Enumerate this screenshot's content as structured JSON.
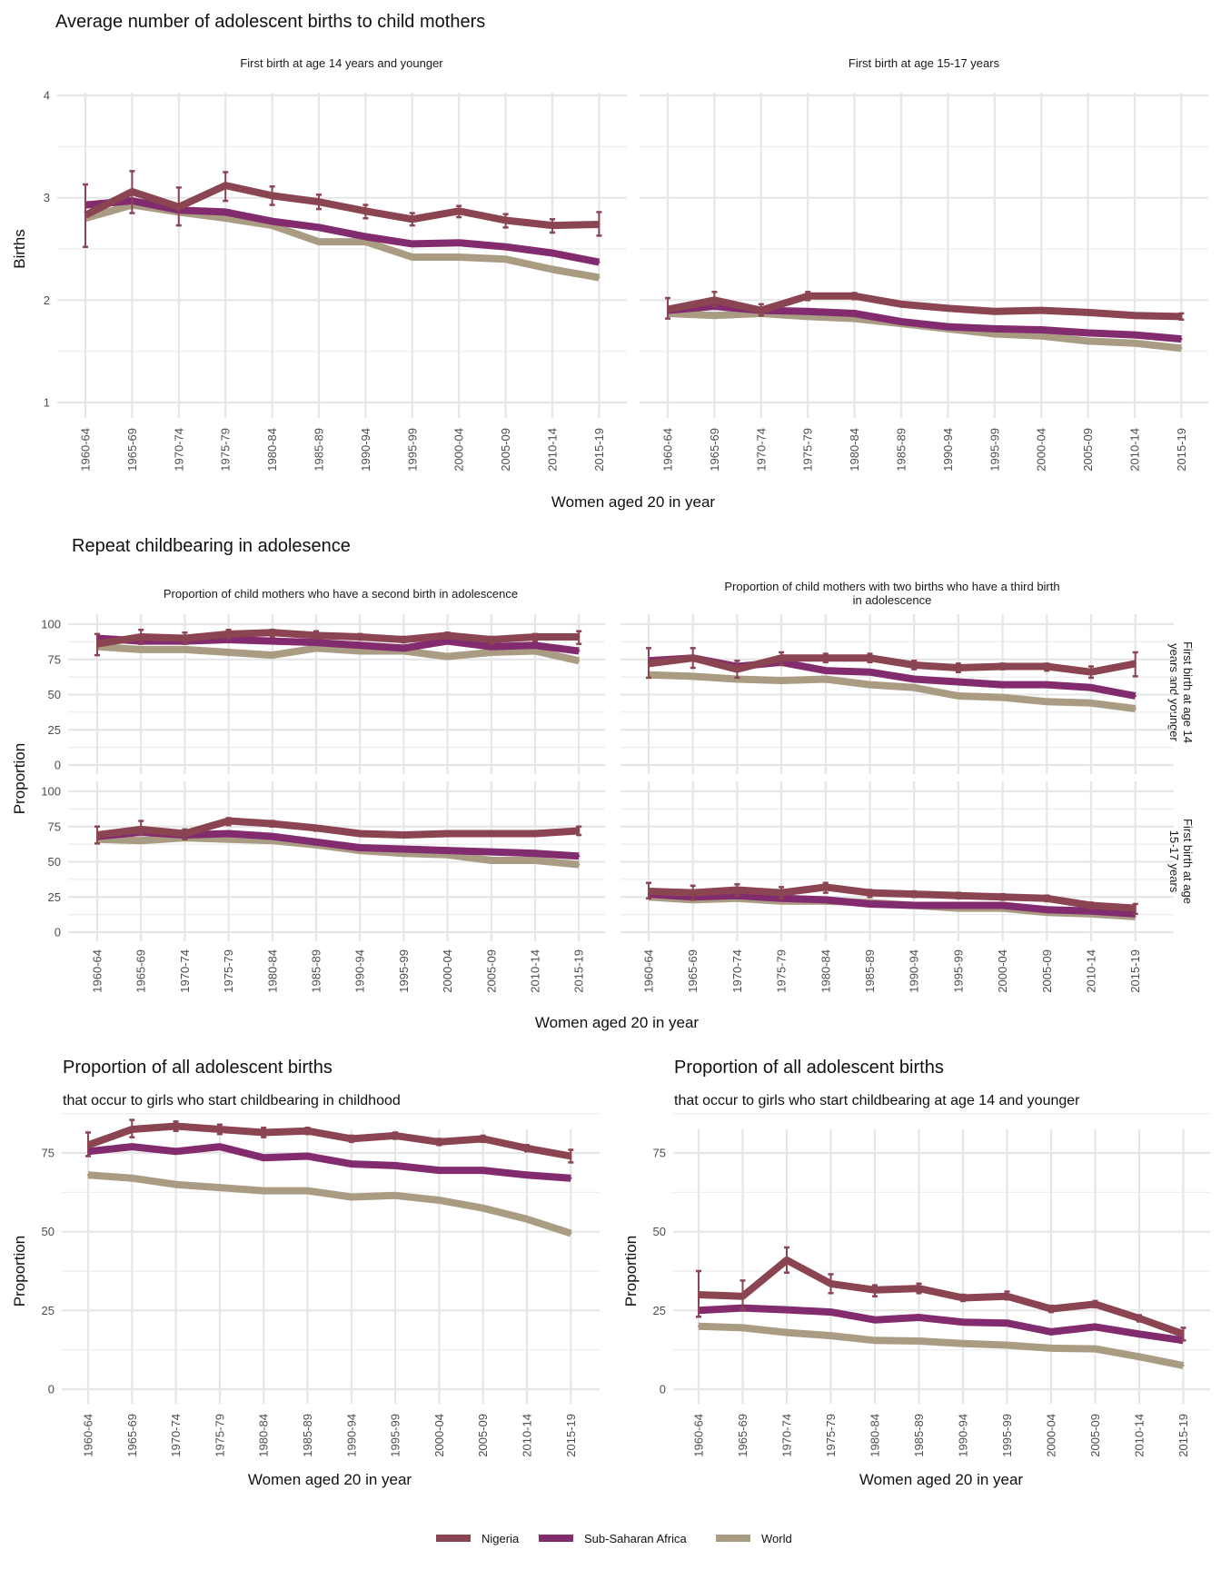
{
  "legend": {
    "position": "bottom",
    "items": [
      {
        "name": "Nigeria",
        "color": "#8B4452"
      },
      {
        "name": "Sub-Saharan Africa",
        "color": "#822C6F"
      },
      {
        "name": "World",
        "color": "#A99C82"
      }
    ]
  },
  "chart_data": [
    {
      "id": "avg-births",
      "type": "line",
      "title": "Average number of adolescent births to child mothers",
      "xlabel": "Women aged 20 in year",
      "ylabel": "Births",
      "ylim": [
        1,
        4
      ],
      "yticks": [
        1,
        2,
        3,
        4
      ],
      "grid": true,
      "categories": [
        "1960-64",
        "1965-69",
        "1970-74",
        "1975-79",
        "1980-84",
        "1985-89",
        "1990-94",
        "1995-99",
        "2000-04",
        "2005-09",
        "2010-14",
        "2015-19"
      ],
      "panels": [
        {
          "strip": "First birth at age 14 years and younger",
          "series": [
            {
              "name": "World",
              "values": [
                2.8,
                2.93,
                2.86,
                2.8,
                2.73,
                2.57,
                2.57,
                2.42,
                2.42,
                2.4,
                2.3,
                2.22
              ]
            },
            {
              "name": "Sub-Saharan Africa",
              "values": [
                2.93,
                2.97,
                2.88,
                2.86,
                2.77,
                2.71,
                2.62,
                2.55,
                2.56,
                2.52,
                2.46,
                2.37
              ]
            },
            {
              "name": "Nigeria",
              "values": [
                2.83,
                3.06,
                2.91,
                3.12,
                3.02,
                2.96,
                2.87,
                2.79,
                2.87,
                2.78,
                2.73,
                2.74
              ],
              "error_low": [
                2.52,
                2.85,
                2.73,
                2.97,
                2.93,
                2.89,
                2.8,
                2.73,
                2.81,
                2.71,
                2.66,
                2.63
              ],
              "error_high": [
                3.13,
                3.26,
                3.1,
                3.25,
                3.11,
                3.03,
                2.93,
                2.85,
                2.92,
                2.84,
                2.79,
                2.86
              ]
            }
          ]
        },
        {
          "strip": "First birth at age 15-17 years",
          "series": [
            {
              "name": "World",
              "values": [
                1.87,
                1.85,
                1.87,
                1.84,
                1.82,
                1.77,
                1.72,
                1.67,
                1.65,
                1.6,
                1.58,
                1.53
              ]
            },
            {
              "name": "Sub-Saharan Africa",
              "values": [
                1.9,
                1.94,
                1.9,
                1.89,
                1.87,
                1.79,
                1.74,
                1.72,
                1.71,
                1.68,
                1.66,
                1.62
              ]
            },
            {
              "name": "Nigeria",
              "values": [
                1.91,
                2.0,
                1.9,
                2.04,
                2.04,
                1.96,
                1.92,
                1.89,
                1.9,
                1.88,
                1.85,
                1.84
              ],
              "error_low": [
                1.82,
                1.94,
                1.85,
                2.0,
                2.01,
                1.94,
                1.9,
                1.87,
                1.88,
                1.86,
                1.83,
                1.81
              ],
              "error_high": [
                2.02,
                2.08,
                1.96,
                2.08,
                2.07,
                1.98,
                1.94,
                1.91,
                1.92,
                1.9,
                1.87,
                1.87
              ]
            }
          ]
        }
      ]
    },
    {
      "id": "repeat-childbearing",
      "type": "line",
      "title": "Repeat childbearing in adolesence",
      "xlabel": "Women aged 20 in year",
      "ylabel": "Proportion",
      "ylim": [
        0,
        100
      ],
      "yticks": [
        0,
        25,
        50,
        75,
        100
      ],
      "grid": true,
      "categories": [
        "1960-64",
        "1965-69",
        "1970-74",
        "1975-79",
        "1980-84",
        "1985-89",
        "1990-94",
        "1995-99",
        "2000-04",
        "2005-09",
        "2010-14",
        "2015-19"
      ],
      "column_strips": [
        "Proportion of child mothers who have a second birth in adolescence",
        "Proportion of child mothers with two births who have a third birth in adolescence"
      ],
      "row_strips": [
        "First birth at age 14 years and younger",
        "First birth at age 15-17 years"
      ],
      "panels": [
        {
          "row": 0,
          "col": 0,
          "series": [
            {
              "name": "World",
              "values": [
                84,
                82,
                82,
                80,
                78,
                83,
                81,
                81,
                77,
                80,
                81,
                74
              ]
            },
            {
              "name": "Sub-Saharan Africa",
              "values": [
                90,
                88,
                88,
                89,
                88,
                87,
                85,
                83,
                88,
                84,
                85,
                81
              ]
            },
            {
              "name": "Nigeria",
              "values": [
                86,
                91,
                90,
                93,
                94,
                92,
                91,
                89,
                92,
                89,
                91,
                91
              ],
              "error_low": [
                78,
                86,
                86,
                90,
                91,
                90,
                89,
                87,
                90,
                86,
                88,
                86
              ],
              "error_high": [
                93,
                96,
                94,
                96,
                96,
                95,
                93,
                91,
                94,
                91,
                93,
                95
              ]
            }
          ]
        },
        {
          "row": 0,
          "col": 1,
          "series": [
            {
              "name": "World",
              "values": [
                64,
                63,
                61,
                60,
                61,
                57,
                55,
                49,
                48,
                45,
                44,
                40
              ]
            },
            {
              "name": "Sub-Saharan Africa",
              "values": [
                74,
                76,
                70,
                73,
                67,
                66,
                61,
                59,
                57,
                57,
                55,
                49
              ]
            },
            {
              "name": "Nigeria",
              "values": [
                72,
                76,
                68,
                76,
                76,
                76,
                71,
                69,
                70,
                70,
                66,
                72
              ],
              "error_low": [
                62,
                69,
                62,
                71,
                73,
                73,
                68,
                66,
                68,
                67,
                62,
                63
              ],
              "error_high": [
                83,
                83,
                74,
                80,
                79,
                79,
                74,
                72,
                72,
                72,
                70,
                80
              ]
            }
          ]
        },
        {
          "row": 1,
          "col": 0,
          "series": [
            {
              "name": "World",
              "values": [
                66,
                65,
                67,
                66,
                65,
                62,
                58,
                56,
                55,
                51,
                51,
                48
              ]
            },
            {
              "name": "Sub-Saharan Africa",
              "values": [
                68,
                71,
                69,
                70,
                68,
                64,
                60,
                59,
                58,
                57,
                56,
                54
              ]
            },
            {
              "name": "Nigeria",
              "values": [
                69,
                73,
                70,
                79,
                77,
                74,
                70,
                69,
                70,
                70,
                70,
                72
              ],
              "error_low": [
                63,
                69,
                66,
                76,
                75,
                72,
                69,
                68,
                69,
                69,
                69,
                69
              ],
              "error_high": [
                75,
                79,
                73,
                81,
                79,
                75,
                71,
                70,
                71,
                71,
                71,
                75
              ]
            }
          ]
        },
        {
          "row": 1,
          "col": 1,
          "series": [
            {
              "name": "World",
              "values": [
                25,
                23,
                24,
                22,
                22,
                21,
                19,
                17,
                17,
                14,
                13,
                11
              ]
            },
            {
              "name": "Sub-Saharan Africa",
              "values": [
                27,
                25,
                26,
                24,
                23,
                20,
                19,
                19,
                19,
                16,
                15,
                13
              ]
            },
            {
              "name": "Nigeria",
              "values": [
                29,
                28,
                30,
                28,
                32,
                28,
                27,
                26,
                25,
                24,
                19,
                17
              ],
              "error_low": [
                24,
                23,
                26,
                24,
                28,
                25,
                25,
                24,
                23,
                22,
                17,
                13
              ],
              "error_high": [
                35,
                33,
                34,
                32,
                35,
                30,
                29,
                28,
                27,
                26,
                21,
                20
              ]
            }
          ]
        }
      ]
    },
    {
      "id": "prop-childhood",
      "type": "line",
      "title": "Proportion of all adolescent births",
      "subtitle": "that occur to girls who start childbearing in childhood",
      "xlabel": "Women aged 20 in year",
      "ylabel": "Proportion",
      "ylim": [
        0,
        100
      ],
      "yticks": [
        0,
        25,
        50,
        75
      ],
      "grid": true,
      "categories": [
        "1960-64",
        "1965-69",
        "1970-74",
        "1975-79",
        "1980-84",
        "1985-89",
        "1990-94",
        "1995-99",
        "2000-04",
        "2005-09",
        "2010-14",
        "2015-19"
      ],
      "series": [
        {
          "name": "World",
          "values": [
            68,
            67,
            65,
            64,
            63,
            63,
            61,
            61.5,
            60,
            57.5,
            54,
            49.5
          ]
        },
        {
          "name": "Sub-Saharan Africa",
          "values": [
            75.5,
            77,
            75.5,
            77,
            73.5,
            74,
            71.5,
            71,
            69.5,
            69.5,
            68,
            67
          ]
        },
        {
          "name": "Nigeria",
          "values": [
            77.5,
            82.5,
            83.5,
            82.5,
            81.5,
            82,
            79.5,
            80.5,
            78.5,
            79.5,
            76.5,
            74
          ],
          "error_low": [
            74,
            80,
            82,
            81,
            80,
            81,
            78.5,
            79.5,
            77.5,
            78.5,
            75.5,
            72
          ],
          "error_high": [
            81.5,
            85.5,
            85,
            84,
            83,
            83,
            80.5,
            81.5,
            79.5,
            80.5,
            77.5,
            76
          ]
        }
      ]
    },
    {
      "id": "prop-14-younger",
      "type": "line",
      "title": "Proportion of all adolescent births",
      "subtitle": "that occur to girls who start childbearing at age 14 and younger",
      "xlabel": "Women aged 20 in year",
      "ylabel": "Proportion",
      "ylim": [
        0,
        100
      ],
      "yticks": [
        0,
        25,
        50,
        75
      ],
      "grid": true,
      "categories": [
        "1960-64",
        "1965-69",
        "1970-74",
        "1975-79",
        "1980-84",
        "1985-89",
        "1990-94",
        "1995-99",
        "2000-04",
        "2005-09",
        "2010-14",
        "2015-19"
      ],
      "series": [
        {
          "name": "World",
          "values": [
            20,
            19.5,
            18,
            17,
            15.5,
            15.3,
            14.5,
            14,
            13,
            12.8,
            10.3,
            7.5
          ]
        },
        {
          "name": "Sub-Saharan Africa",
          "values": [
            25,
            25.8,
            25.2,
            24.5,
            22,
            22.8,
            21.3,
            21,
            18.2,
            19.8,
            17.5,
            15.5
          ]
        },
        {
          "name": "Nigeria",
          "values": [
            30,
            29.5,
            41,
            33.5,
            31.5,
            32,
            29,
            29.5,
            25.5,
            27,
            22.5,
            17.5
          ],
          "error_low": [
            23,
            25.5,
            37,
            30.5,
            29.5,
            30.5,
            28,
            28.5,
            24.5,
            26,
            21.5,
            15.5
          ],
          "error_high": [
            37.5,
            34.5,
            45,
            36.5,
            33,
            33.5,
            30,
            31,
            26.5,
            28,
            23.5,
            19.5
          ]
        }
      ]
    }
  ]
}
